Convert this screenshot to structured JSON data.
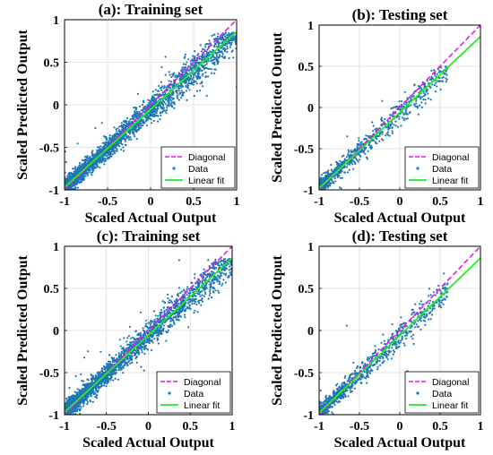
{
  "figure": {
    "colors": {
      "data": "#1f77b4",
      "diagonal": "#e619e6",
      "fit": "#22ee22",
      "grid": "#dcdcdc",
      "axis": "#000000"
    }
  },
  "chart_data": [
    {
      "type": "scatter",
      "title": "(a): Training set",
      "xlabel": "Scaled Actual Output",
      "ylabel": "Scaled Predicted Output",
      "xlim": [
        -1,
        1
      ],
      "ylim": [
        -1,
        1
      ],
      "x_ticks": [
        "-1",
        "-0.5",
        "0",
        "0.5",
        "1"
      ],
      "y_ticks": [
        "-1",
        "-0.5",
        "0",
        "0.5",
        "1"
      ],
      "grid": true,
      "legend_position": "bottom-right",
      "legend": [
        "Diagonal",
        "Data",
        "Linear fit"
      ],
      "series": [
        {
          "name": "Diagonal",
          "style": "dashed-line",
          "x": [
            -1,
            1
          ],
          "y": [
            -1,
            1
          ]
        },
        {
          "name": "Data",
          "style": "markers",
          "approx_points": 3000,
          "x_range": [
            -1,
            1
          ],
          "y_range": [
            -1,
            0.85
          ],
          "spread": 0.07
        },
        {
          "name": "Linear fit",
          "style": "line",
          "x": [
            -1,
            1
          ],
          "y": [
            -0.97,
            0.86
          ]
        }
      ]
    },
    {
      "type": "scatter",
      "title": "(b): Testing set",
      "xlabel": "Scaled Actual Output",
      "ylabel": "Scaled Predicted Output",
      "xlim": [
        -1,
        1
      ],
      "ylim": [
        -1,
        1
      ],
      "x_ticks": [
        "-1",
        "-0.5",
        "0",
        "0.5",
        "1"
      ],
      "y_ticks": [
        "-1",
        "-0.5",
        "0",
        "0.5",
        "1"
      ],
      "grid": true,
      "legend_position": "bottom-right",
      "legend": [
        "Diagonal",
        "Data",
        "Linear fit"
      ],
      "series": [
        {
          "name": "Diagonal",
          "style": "dashed-line",
          "x": [
            -1,
            1
          ],
          "y": [
            -1,
            1
          ]
        },
        {
          "name": "Data",
          "style": "markers",
          "approx_points": 1000,
          "x_range": [
            -1,
            0.6
          ],
          "y_range": [
            -1,
            0.5
          ],
          "spread": 0.07
        },
        {
          "name": "Linear fit",
          "style": "line",
          "x": [
            -1,
            1
          ],
          "y": [
            -0.98,
            0.86
          ]
        }
      ]
    },
    {
      "type": "scatter",
      "title": "(c): Training set",
      "xlabel": "Scaled Actual Output",
      "ylabel": "Scaled Predicted Output",
      "xlim": [
        -1,
        1
      ],
      "ylim": [
        -1,
        1
      ],
      "x_ticks": [
        "-1",
        "-0.5",
        "0",
        "0.5",
        "1"
      ],
      "y_ticks": [
        "-1",
        "-0.5",
        "0",
        "0.5",
        "1"
      ],
      "grid": true,
      "legend_position": "bottom-right",
      "legend": [
        "Diagonal",
        "Data",
        "Linear fit"
      ],
      "series": [
        {
          "name": "Diagonal",
          "style": "dashed-line",
          "x": [
            -1,
            1
          ],
          "y": [
            -1,
            1
          ]
        },
        {
          "name": "Data",
          "style": "markers",
          "approx_points": 3000,
          "x_range": [
            -1,
            1
          ],
          "y_range": [
            -1,
            0.85
          ],
          "spread": 0.07
        },
        {
          "name": "Linear fit",
          "style": "line",
          "x": [
            -1,
            1
          ],
          "y": [
            -0.97,
            0.86
          ]
        }
      ]
    },
    {
      "type": "scatter",
      "title": "(d): Testing set",
      "xlabel": "Scaled Actual Output",
      "ylabel": "Scaled Predicted Output",
      "xlim": [
        -1,
        1
      ],
      "ylim": [
        -1,
        1
      ],
      "x_ticks": [
        "-1",
        "-0.5",
        "0",
        "0.5",
        "1"
      ],
      "y_ticks": [
        "-1",
        "-0.5",
        "0",
        "0.5",
        "1"
      ],
      "grid": true,
      "legend_position": "bottom-right",
      "legend": [
        "Diagonal",
        "Data",
        "Linear fit"
      ],
      "series": [
        {
          "name": "Diagonal",
          "style": "dashed-line",
          "x": [
            -1,
            1
          ],
          "y": [
            -1,
            1
          ]
        },
        {
          "name": "Data",
          "style": "markers",
          "approx_points": 1000,
          "x_range": [
            -1,
            0.6
          ],
          "y_range": [
            -1,
            0.7
          ],
          "spread": 0.07
        },
        {
          "name": "Linear fit",
          "style": "line",
          "x": [
            -1,
            1
          ],
          "y": [
            -0.98,
            0.86
          ]
        }
      ]
    }
  ]
}
